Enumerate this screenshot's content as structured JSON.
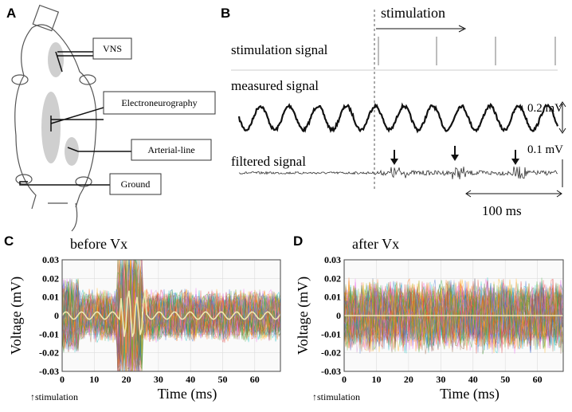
{
  "panel_labels": [
    "A",
    "B",
    "C",
    "D"
  ],
  "diagram": {
    "labels": [
      "VNS",
      "Electroneurography",
      "Arterial-line",
      "Ground"
    ]
  },
  "signals": {
    "stimulation": "stimulation",
    "rows": [
      "stimulation signal",
      "measured signal",
      "filtered signal"
    ],
    "scale_labels": [
      "0.2 mV",
      "0.1 mV"
    ],
    "time_scale": "100 ms"
  },
  "chart_data": [
    {
      "type": "line",
      "title": "before Vx",
      "x_label": "Time (ms)",
      "y_label": "Voltage (mV)",
      "annotation": "↑stimulation",
      "xlim": [
        0,
        68
      ],
      "ylim": [
        -0.03,
        0.03
      ],
      "xticks": [
        0,
        10,
        20,
        30,
        40,
        50,
        60
      ],
      "yticks": [
        -0.03,
        -0.02,
        -0.01,
        0,
        0.01,
        0.02,
        0.03
      ],
      "grid": true
    },
    {
      "type": "line",
      "title": "after Vx",
      "x_label": "Time (ms)",
      "y_label": "Voltage (mV)",
      "annotation": "↑stimulation",
      "xlim": [
        0,
        68
      ],
      "ylim": [
        -0.03,
        0.03
      ],
      "xticks": [
        0,
        10,
        20,
        30,
        40,
        50,
        60
      ],
      "yticks": [
        -0.03,
        -0.02,
        -0.01,
        0,
        0.01,
        0.02,
        0.03
      ],
      "grid": true
    }
  ]
}
